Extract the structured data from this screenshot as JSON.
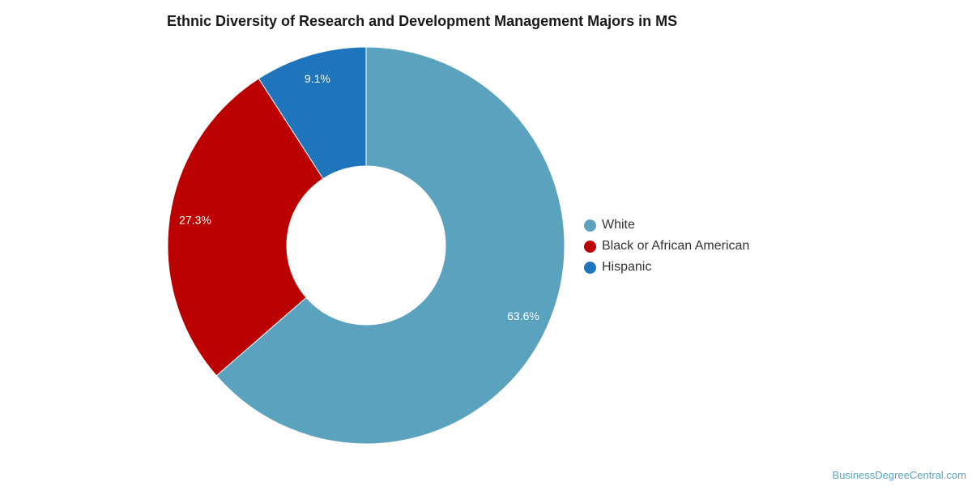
{
  "chart_data": {
    "type": "pie",
    "title": "Ethnic Diversity of Research and Development Management Majors in MS",
    "donut": true,
    "legend_position": "right",
    "categories": [
      "White",
      "Black or African American",
      "Hispanic"
    ],
    "values": [
      63.6,
      27.3,
      9.1
    ],
    "labels": [
      "63.6%",
      "27.3%",
      "9.1%"
    ],
    "colors": [
      "#5ba2bf",
      "#bb0000",
      "#1f75bb"
    ]
  },
  "footer": {
    "credit": "BusinessDegreeCentral.com"
  }
}
